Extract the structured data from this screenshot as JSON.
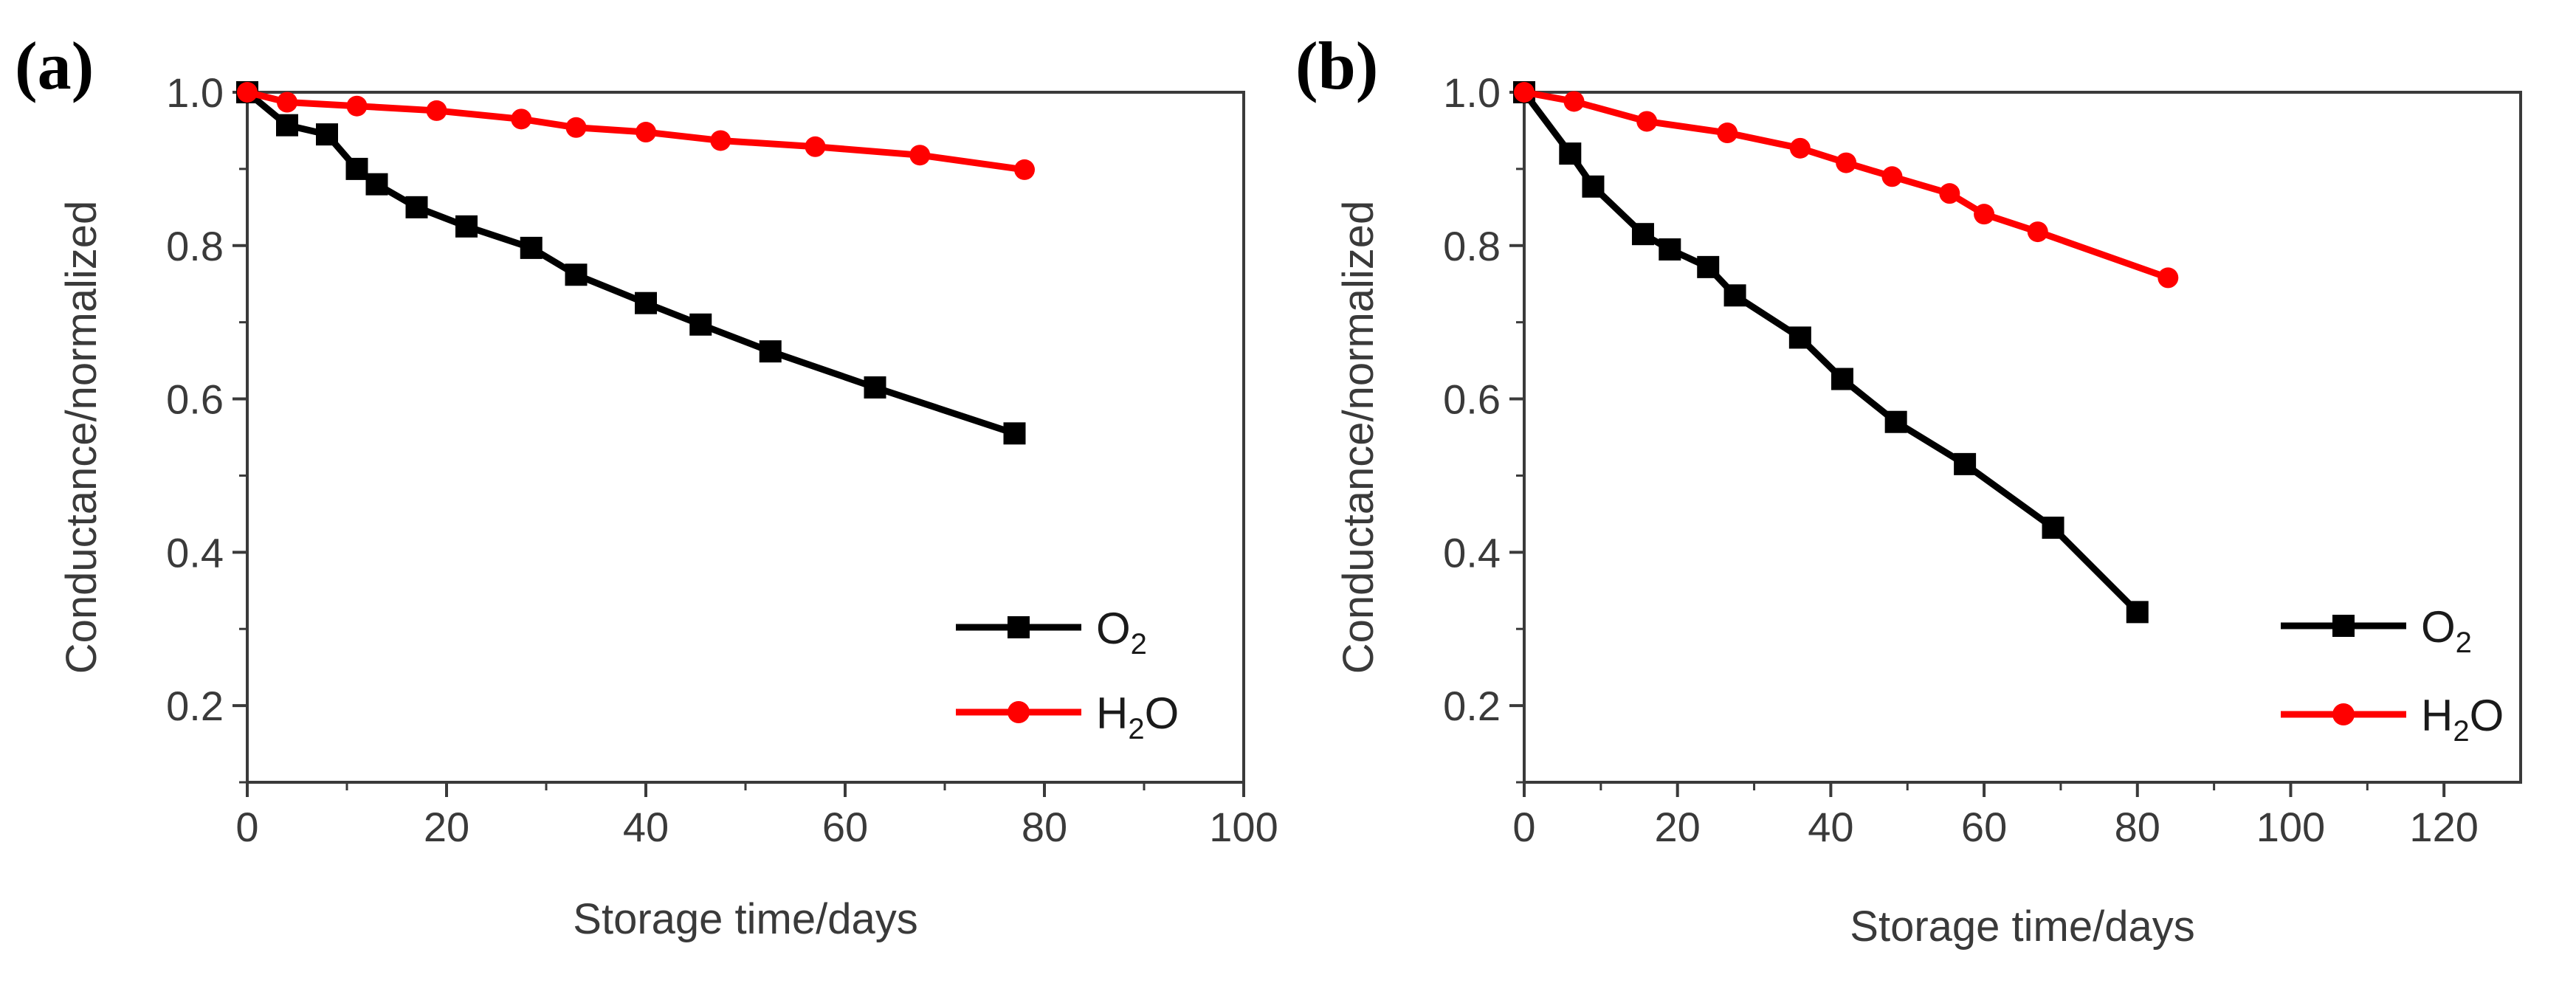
{
  "chart_data": [
    {
      "panel": "(a)",
      "type": "line",
      "xlabel": "Storage time/days",
      "ylabel": "Conductance/normalized",
      "xlim": [
        0,
        100
      ],
      "ylim": [
        0.1,
        1.0
      ],
      "xticks": [
        0,
        20,
        40,
        60,
        80,
        100
      ],
      "xtick_labels": [
        "0",
        "20",
        "40",
        "60",
        "80",
        "100"
      ],
      "yticks": [
        0.2,
        0.4,
        0.6,
        0.8,
        1.0
      ],
      "ytick_labels": [
        "0.2",
        "0.4",
        "0.6",
        "0.8",
        "1.0"
      ],
      "grid": false,
      "legend": "bottom-right",
      "series": [
        {
          "name": "O2",
          "legend_main": "O",
          "legend_sub": "2",
          "legend_tail": "",
          "legend_head": "",
          "color": "#000000",
          "marker": "square",
          "x": [
            0,
            4,
            8,
            11,
            13,
            17,
            22,
            28.5,
            33,
            40,
            45.5,
            52.5,
            63,
            77
          ],
          "y": [
            1.0,
            0.957,
            0.945,
            0.9,
            0.88,
            0.85,
            0.825,
            0.797,
            0.762,
            0.725,
            0.697,
            0.662,
            0.615,
            0.555
          ]
        },
        {
          "name": "H2O",
          "legend_head": "H",
          "legend_sub": "2",
          "legend_tail": "O",
          "legend_main": "",
          "color": "#ff0000",
          "marker": "circle",
          "x": [
            0,
            4,
            11,
            19,
            27.5,
            33,
            40,
            47.5,
            57,
            67.5,
            78
          ],
          "y": [
            1.0,
            0.987,
            0.982,
            0.976,
            0.965,
            0.954,
            0.948,
            0.937,
            0.929,
            0.918,
            0.899
          ]
        }
      ]
    },
    {
      "panel": "(b)",
      "type": "line",
      "xlabel": "Storage time/days",
      "ylabel": "Conductance/normalized",
      "xlim": [
        0,
        130
      ],
      "ylim": [
        0.1,
        1.0
      ],
      "xticks": [
        0,
        20,
        40,
        60,
        80,
        100,
        120
      ],
      "xtick_labels": [
        "0",
        "20",
        "40",
        "60",
        "80",
        "100",
        "120"
      ],
      "yticks": [
        0.2,
        0.4,
        0.6,
        0.8,
        1.0
      ],
      "ytick_labels": [
        "0.2",
        "0.4",
        "0.6",
        "0.8",
        "1.0"
      ],
      "grid": false,
      "legend": "bottom-right",
      "series": [
        {
          "name": "O2",
          "legend_main": "O",
          "legend_sub": "2",
          "legend_tail": "",
          "legend_head": "",
          "color": "#000000",
          "marker": "square",
          "x": [
            0,
            6,
            9,
            15.5,
            19,
            24,
            27.5,
            36,
            41.5,
            48.5,
            57.5,
            69,
            80
          ],
          "y": [
            1.0,
            0.92,
            0.877,
            0.815,
            0.795,
            0.772,
            0.735,
            0.68,
            0.626,
            0.57,
            0.515,
            0.432,
            0.322
          ]
        },
        {
          "name": "H2O",
          "legend_head": "H",
          "legend_sub": "2",
          "legend_tail": "O",
          "legend_main": "",
          "color": "#ff0000",
          "marker": "circle",
          "x": [
            0,
            6.5,
            16,
            26.5,
            36,
            42,
            48,
            55.5,
            60,
            67,
            84
          ],
          "y": [
            1.0,
            0.988,
            0.962,
            0.947,
            0.927,
            0.908,
            0.89,
            0.868,
            0.841,
            0.818,
            0.758
          ]
        }
      ]
    }
  ]
}
